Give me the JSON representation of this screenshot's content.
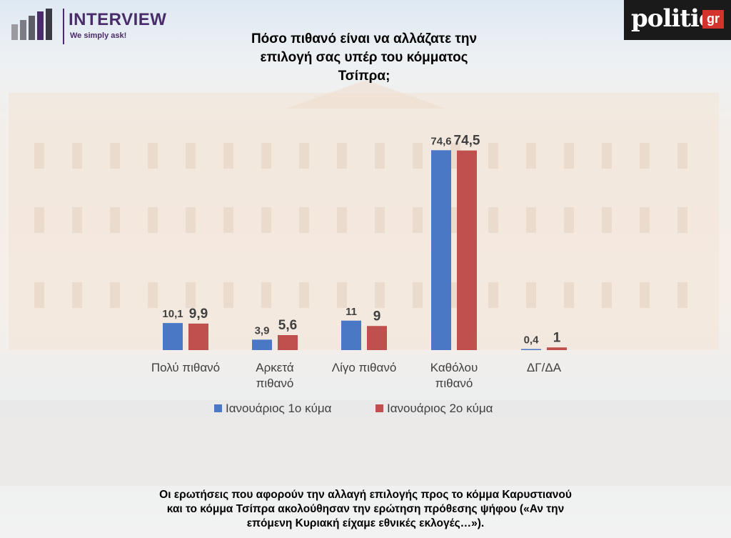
{
  "brand": {
    "name": "INTERVIEW",
    "slogan": "We simply ask!",
    "media_logo": "politic",
    "media_logo_suffix": "gr",
    "logo_color": "#4a2c6a"
  },
  "footnote": {
    "line1": "Οι ερωτήσεις που αφορούν την αλλαγή επιλογής προς το κόμμα Καρυστιανού",
    "line2": "και το κόμμα Τσίπρα ακολούθησαν την ερώτηση πρόθεσης ψήφου («Αν την",
    "line3": "επόμενη Κυριακή είχαμε εθνικές εκλογές…»)."
  },
  "chart_data": {
    "type": "bar",
    "title_lines": [
      "Πόσο πιθανό είναι να αλλάζατε την",
      "επιλογή σας υπέρ του κόμματος",
      "Τσίπρα;"
    ],
    "categories": [
      [
        "Πολύ πιθανό"
      ],
      [
        "Αρκετά",
        "πιθανό"
      ],
      [
        "Λίγο πιθανό"
      ],
      [
        "Καθόλου",
        "πιθανό"
      ],
      [
        "ΔΓ/ΔΑ"
      ]
    ],
    "series": [
      {
        "name": "Ιανουάριος 1ο κύμα",
        "color": "#4a78c4",
        "values": [
          10.1,
          3.9,
          11,
          74.6,
          0.4
        ],
        "labels": [
          "10,1",
          "3,9",
          "11",
          "74,6",
          "0,4"
        ]
      },
      {
        "name": "Ιανουάριος 2ο κύμα",
        "color": "#c0504d",
        "values": [
          9.9,
          5.6,
          9,
          74.5,
          1
        ],
        "labels": [
          "9,9",
          "5,6",
          "9",
          "74,5",
          "1"
        ]
      }
    ],
    "ylim": [
      0,
      80
    ],
    "grid": false,
    "legend_position": "bottom"
  }
}
